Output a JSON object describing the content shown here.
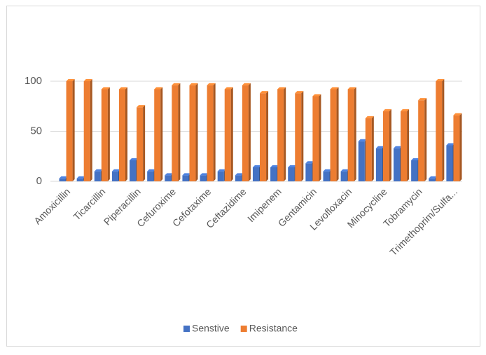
{
  "chart_data": {
    "type": "bar",
    "categories": [
      "Amoxicillin",
      null,
      "Ticarcillin",
      null,
      "Piperacillin",
      null,
      "Cefuroxime",
      null,
      "Cefotaxime",
      null,
      "Ceftazidime",
      null,
      "Imipenem",
      null,
      "Gentamicin",
      null,
      "Levofloxacin",
      null,
      "Minocycline",
      null,
      "Tobramycin",
      null,
      "Trimethoprim/Sulfa..."
    ],
    "series": [
      {
        "name": "Senstive",
        "color": "#4472c4",
        "values": [
          3,
          3,
          10,
          10,
          21,
          10,
          6,
          6,
          6,
          10,
          6,
          14,
          14,
          14,
          18,
          10,
          10,
          40,
          33,
          33,
          21,
          3,
          36
        ]
      },
      {
        "name": "Resistance",
        "color": "#ed7d31",
        "values": [
          100,
          100,
          92,
          92,
          74,
          92,
          96,
          96,
          96,
          92,
          96,
          88,
          92,
          88,
          85,
          92,
          92,
          63,
          70,
          70,
          81,
          100,
          66
        ]
      }
    ],
    "ylim": [
      0,
      100
    ],
    "yticks": [
      0,
      50,
      100
    ],
    "grid": true,
    "legend": "bottom"
  }
}
